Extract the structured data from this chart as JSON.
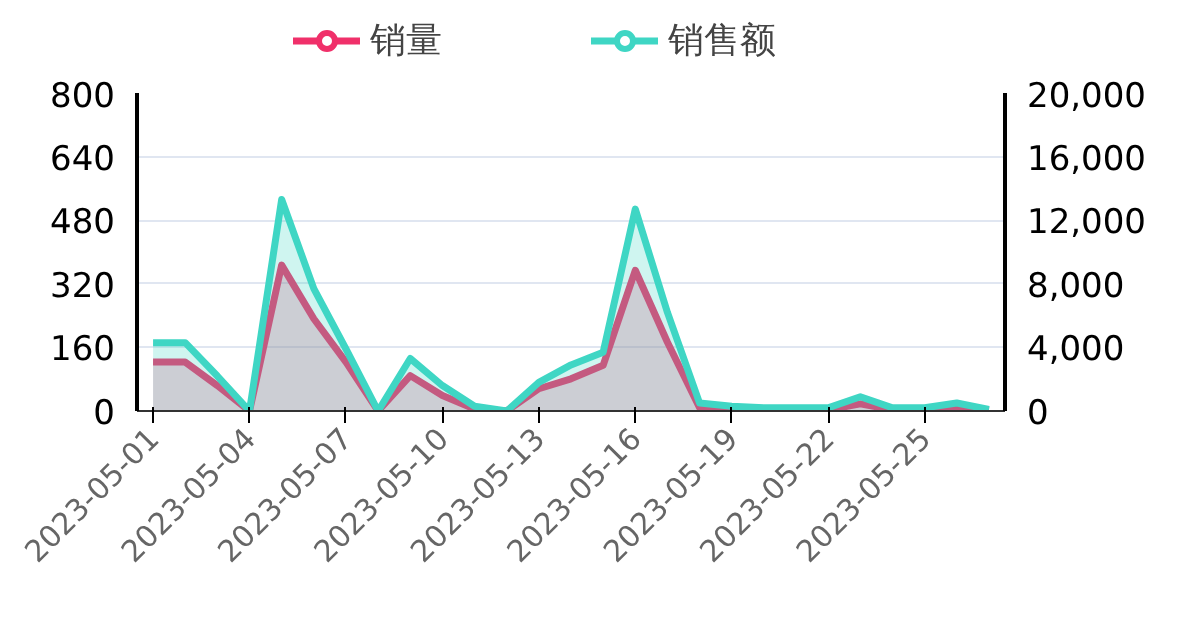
{
  "chart_data": {
    "type": "area",
    "legend": "top",
    "grid": "y",
    "marker": "none",
    "categories": [
      "2023-05-01",
      null,
      null,
      "2023-05-04",
      null,
      null,
      "2023-05-07",
      null,
      null,
      "2023-05-10",
      null,
      null,
      "2023-05-13",
      null,
      null,
      "2023-05-16",
      null,
      null,
      "2023-05-19",
      null,
      null,
      "2023-05-22",
      null,
      null,
      "2023-05-25",
      null,
      null
    ],
    "ylim": [
      0,
      800
    ],
    "yticks": [
      0,
      160,
      320,
      480,
      640,
      800
    ],
    "y2lim": [
      0,
      20000
    ],
    "y2ticks": [
      0,
      {
        "value": 4000,
        "label": "4,000"
      },
      {
        "value": 8000,
        "label": "8,000"
      },
      {
        "value": 12000,
        "label": "12,000"
      },
      {
        "value": 16000,
        "label": "16,000"
      },
      {
        "value": 20000,
        "label": "20,000"
      }
    ],
    "series": [
      {
        "name": "销量",
        "color": "#f0306a",
        "values": [
          123,
          123,
          64,
          0,
          367,
          232,
          123,
          0,
          89,
          39,
          5,
          0,
          56,
          81,
          115,
          354,
          173,
          8,
          5,
          3,
          3,
          3,
          18,
          3,
          3,
          8,
          1
        ]
      },
      {
        "name": "销售额",
        "color": "#3fd6c4",
        "axis": "y2",
        "values": [
          4300,
          4300,
          2200,
          0,
          13300,
          7700,
          3900,
          0,
          3300,
          1600,
          300,
          0,
          1800,
          2900,
          3700,
          12700,
          6200,
          500,
          300,
          200,
          200,
          200,
          900,
          200,
          200,
          500,
          100
        ]
      }
    ]
  }
}
